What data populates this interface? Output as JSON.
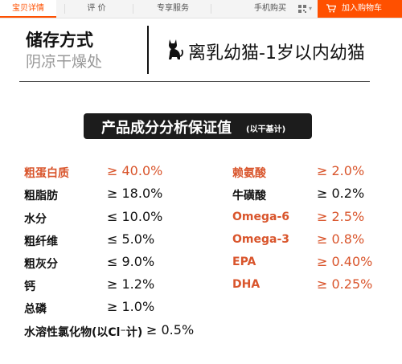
{
  "tabs": {
    "detail": "宝贝详情",
    "review": "评 价",
    "share": "专享服务"
  },
  "header": {
    "mobile_buy": "手机购买",
    "add_to_cart": "加入购物车"
  },
  "storage": {
    "title": "储存方式",
    "subtitle": "阴凉干燥处",
    "age": "离乳幼猫-1岁以内幼猫"
  },
  "analysis": {
    "title": "产品成分分析保证值",
    "note": "(以干基计)"
  },
  "left": [
    {
      "name": "粗蛋白质",
      "value": "≥ 40.0%"
    },
    {
      "name": "粗脂肪",
      "value": "≥ 18.0%"
    },
    {
      "name": "水分",
      "value": "≤ 10.0%"
    },
    {
      "name": "粗纤维",
      "value": "≤ 5.0%"
    },
    {
      "name": "粗灰分",
      "value": "≤ 9.0%"
    },
    {
      "name": "钙",
      "value": "≥ 1.2%"
    },
    {
      "name": "总磷",
      "value": "≥ 1.0%"
    },
    {
      "name": "水溶性氯化物(以Cl⁻计)",
      "value": "≥ 0.5%"
    }
  ],
  "right": [
    {
      "name": "赖氨酸",
      "value": "≥ 2.0%"
    },
    {
      "name": "牛磺酸",
      "value": "≥ 0.2%"
    },
    {
      "name": "Omega-6",
      "value": "≥ 2.5%"
    },
    {
      "name": "Omega-3",
      "value": "≥ 0.8%"
    },
    {
      "name": "EPA",
      "value": "≥ 0.40%"
    },
    {
      "name": "DHA",
      "value": "≥ 0.25%"
    }
  ],
  "colors": {
    "accent": "#ff5000",
    "highlight": "#d9552c"
  },
  "icons": {
    "qr": "qr-code-icon",
    "cart": "cart-icon",
    "cat": "cat-silhouette-icon"
  }
}
